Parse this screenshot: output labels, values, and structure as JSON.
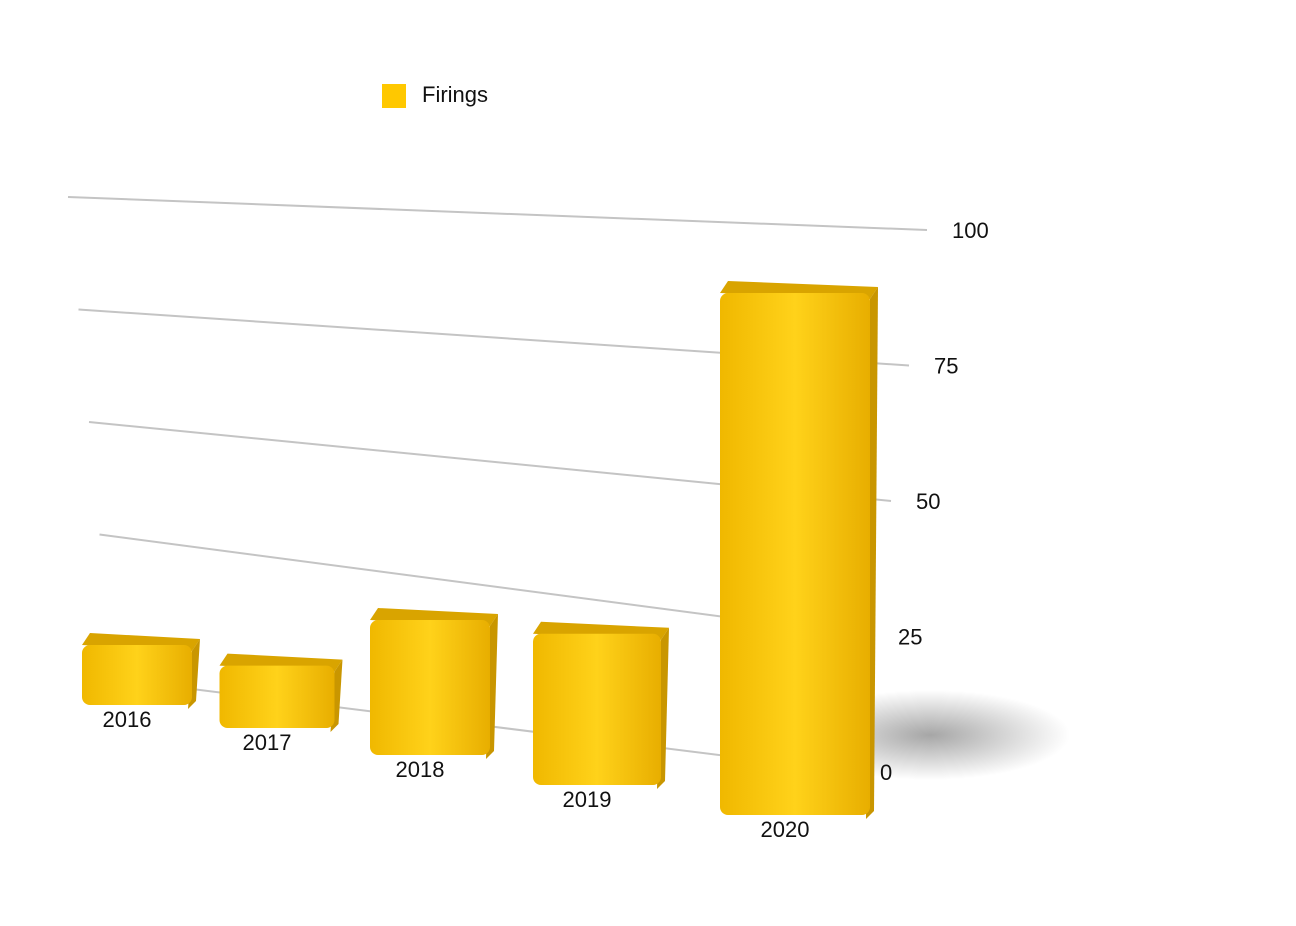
{
  "chart_data": {
    "type": "bar3d",
    "categories": [
      "2016",
      "2017",
      "2018",
      "2019",
      "2020"
    ],
    "series": [
      {
        "name": "Firings",
        "color": "#ffc800",
        "values": [
          12,
          12,
          25,
          27,
          90
        ]
      }
    ],
    "ylim": [
      0,
      100
    ],
    "yticks": [
      0,
      25,
      50,
      75,
      100
    ],
    "grid": true,
    "legend": "top-left"
  }
}
